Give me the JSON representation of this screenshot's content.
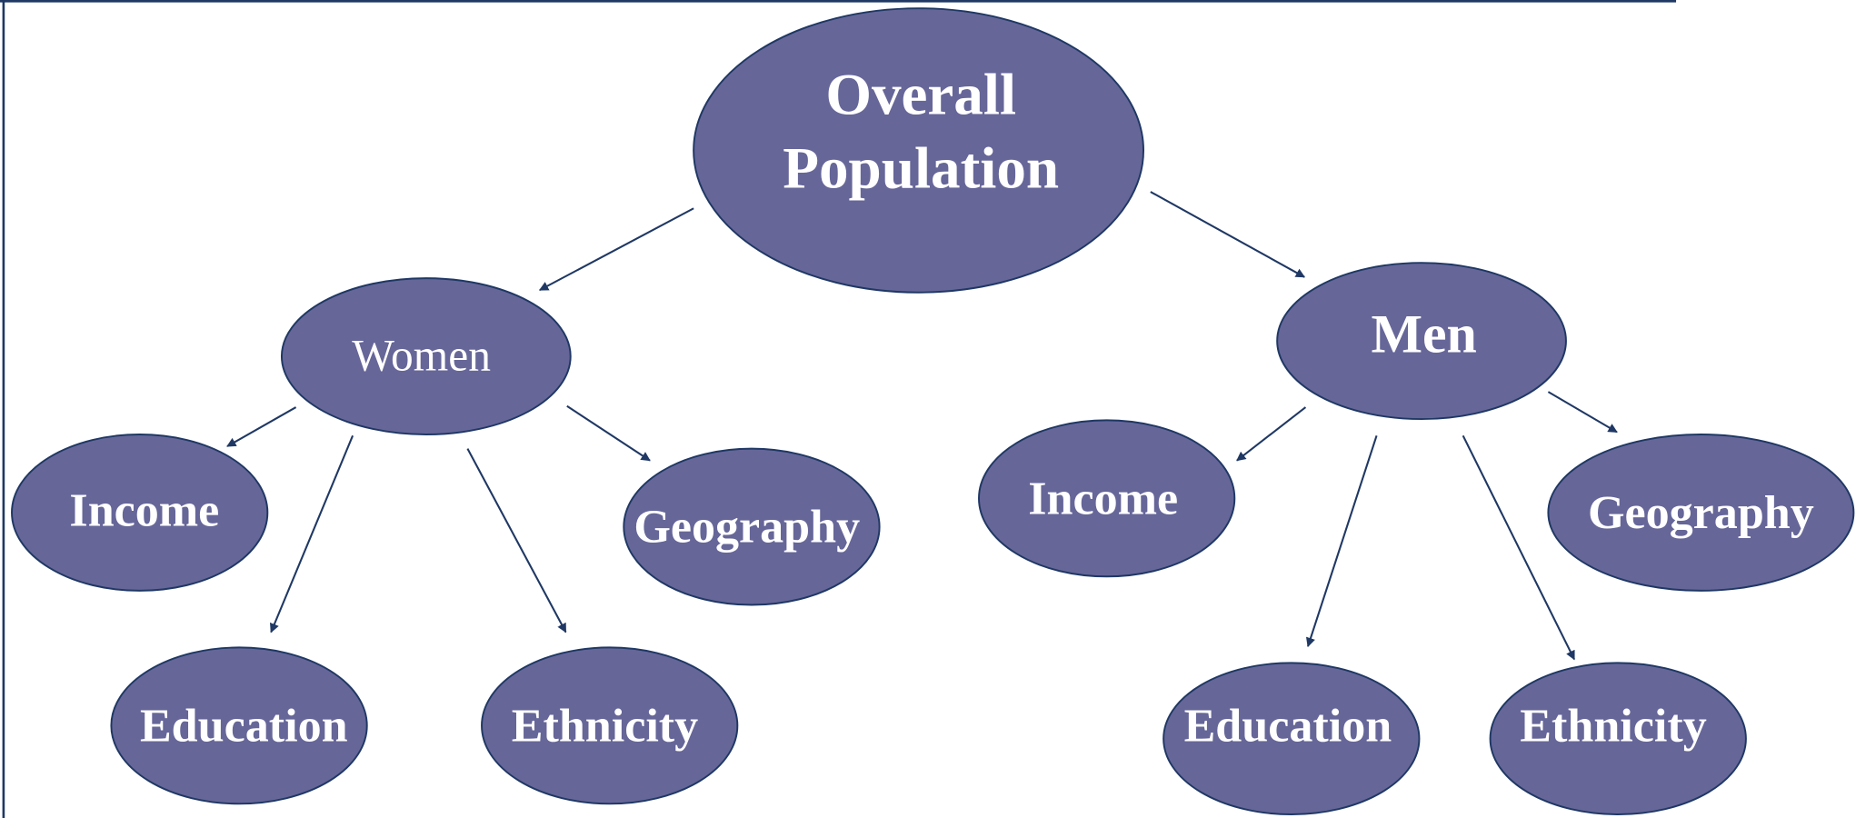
{
  "nodes": [
    {
      "label": [
        "Overall",
        "Population"
      ]
    },
    {
      "label": "Women"
    },
    {
      "label": "Income"
    },
    {
      "label": "Education"
    },
    {
      "label": "Ethnicity"
    },
    {
      "label": "Geography"
    },
    {
      "label": "Men"
    },
    {
      "label": "Income"
    },
    {
      "label": "Education"
    },
    {
      "label": "Ethnicity"
    },
    {
      "label": "Geography"
    }
  ]
}
